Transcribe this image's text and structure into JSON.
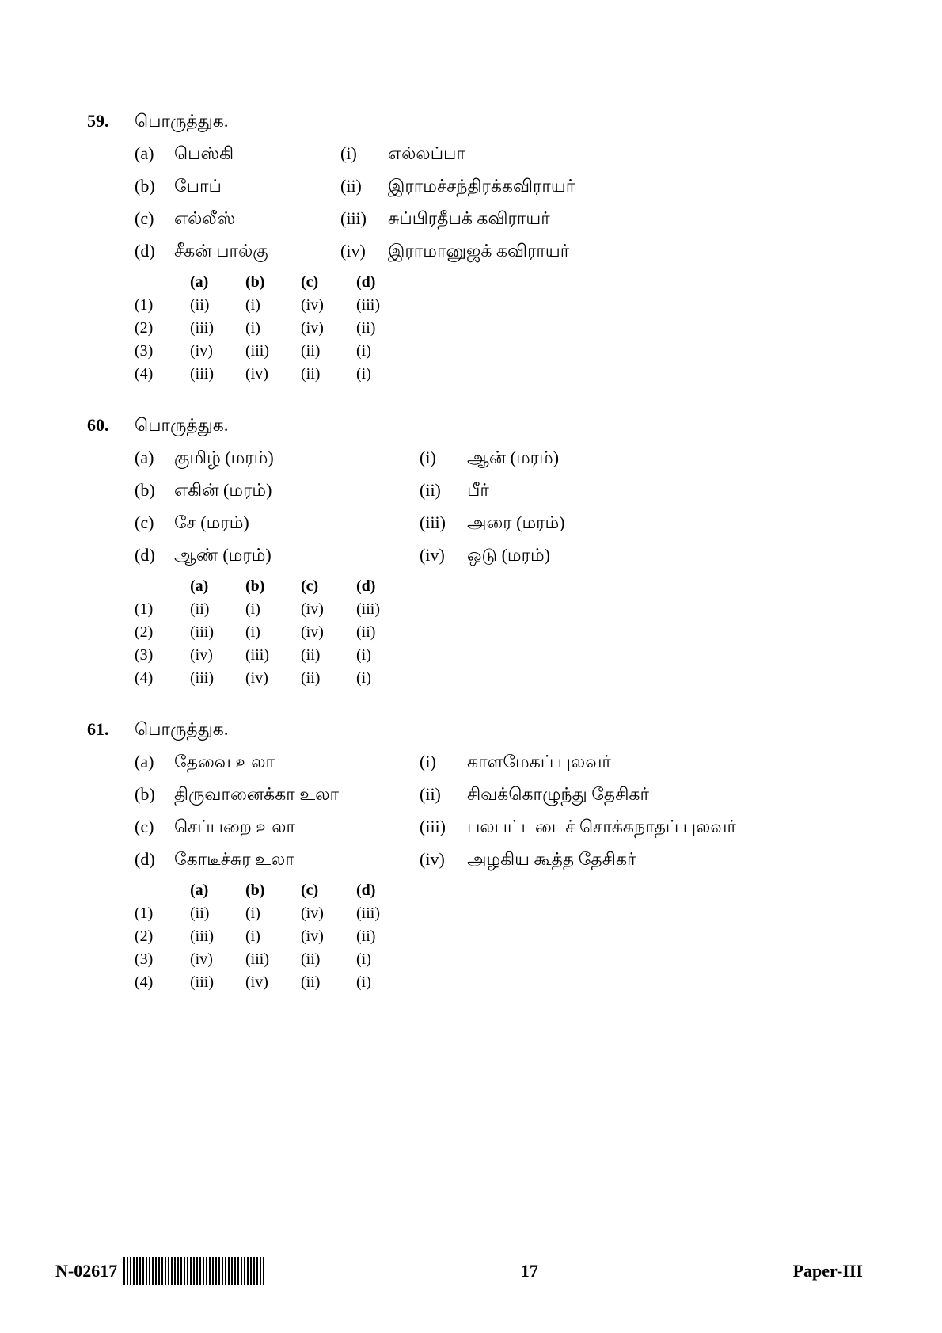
{
  "questions": [
    {
      "number": "59.",
      "title": "பொருத்துக.",
      "match_left": [
        {
          "label": "(a)",
          "text": "பெஸ்கி"
        },
        {
          "label": "(b)",
          "text": "போப்"
        },
        {
          "label": "(c)",
          "text": "எல்லீஸ்"
        },
        {
          "label": "(d)",
          "text": "சீகன் பால்கு"
        }
      ],
      "match_right": [
        {
          "label": "(i)",
          "text": "எல்லப்பா"
        },
        {
          "label": "(ii)",
          "text": "இராமச்சந்திரக்கவிராயர்"
        },
        {
          "label": "(iii)",
          "text": "சுப்பிரதீபக் கவிராயர்"
        },
        {
          "label": "(iv)",
          "text": "இராமானுஜக் கவிராயர்"
        }
      ],
      "left_width": "narrow",
      "options_header": [
        "(a)",
        "(b)",
        "(c)",
        "(d)"
      ],
      "options": [
        {
          "num": "(1)",
          "vals": [
            "(ii)",
            "(i)",
            "(iv)",
            "(iii)"
          ]
        },
        {
          "num": "(2)",
          "vals": [
            "(iii)",
            "(i)",
            "(iv)",
            "(ii)"
          ]
        },
        {
          "num": "(3)",
          "vals": [
            "(iv)",
            "(iii)",
            "(ii)",
            "(i)"
          ]
        },
        {
          "num": "(4)",
          "vals": [
            "(iii)",
            "(iv)",
            "(ii)",
            "(i)"
          ]
        }
      ]
    },
    {
      "number": "60.",
      "title": "பொருத்துக.",
      "match_left": [
        {
          "label": "(a)",
          "text": "குமிழ் (மரம்)"
        },
        {
          "label": "(b)",
          "text": "எகின் (மரம்)"
        },
        {
          "label": "(c)",
          "text": "சே (மரம்)"
        },
        {
          "label": "(d)",
          "text": "ஆண் (மரம்)"
        }
      ],
      "match_right": [
        {
          "label": "(i)",
          "text": "ஆன் (மரம்)"
        },
        {
          "label": "(ii)",
          "text": "பீர்"
        },
        {
          "label": "(iii)",
          "text": "அரை (மரம்)"
        },
        {
          "label": "(iv)",
          "text": "ஒடு (மரம்)"
        }
      ],
      "left_width": "wide",
      "options_header": [
        "(a)",
        "(b)",
        "(c)",
        "(d)"
      ],
      "options": [
        {
          "num": "(1)",
          "vals": [
            "(ii)",
            "(i)",
            "(iv)",
            "(iii)"
          ]
        },
        {
          "num": "(2)",
          "vals": [
            "(iii)",
            "(i)",
            "(iv)",
            "(ii)"
          ]
        },
        {
          "num": "(3)",
          "vals": [
            "(iv)",
            "(iii)",
            "(ii)",
            "(i)"
          ]
        },
        {
          "num": "(4)",
          "vals": [
            "(iii)",
            "(iv)",
            "(ii)",
            "(i)"
          ]
        }
      ]
    },
    {
      "number": "61.",
      "title": "பொருத்துக.",
      "match_left": [
        {
          "label": "(a)",
          "text": "தேவை உலா"
        },
        {
          "label": "(b)",
          "text": "திருவானைக்கா உலா"
        },
        {
          "label": "(c)",
          "text": "செப்பறை உலா"
        },
        {
          "label": "(d)",
          "text": "கோடீச்சுர உலா"
        }
      ],
      "match_right": [
        {
          "label": "(i)",
          "text": "காளமேகப் புலவர்"
        },
        {
          "label": "(ii)",
          "text": "சிவக்கொழுந்து தேசிகர்"
        },
        {
          "label": "(iii)",
          "text": "பலபட்டடைச் சொக்கநாதப் புலவர்"
        },
        {
          "label": "(iv)",
          "text": "அழகிய கூத்த தேசிகர்"
        }
      ],
      "left_width": "wide",
      "options_header": [
        "(a)",
        "(b)",
        "(c)",
        "(d)"
      ],
      "options": [
        {
          "num": "(1)",
          "vals": [
            "(ii)",
            "(i)",
            "(iv)",
            "(iii)"
          ]
        },
        {
          "num": "(2)",
          "vals": [
            "(iii)",
            "(i)",
            "(iv)",
            "(ii)"
          ]
        },
        {
          "num": "(3)",
          "vals": [
            "(iv)",
            "(iii)",
            "(ii)",
            "(i)"
          ]
        },
        {
          "num": "(4)",
          "vals": [
            "(iii)",
            "(iv)",
            "(ii)",
            "(i)"
          ]
        }
      ]
    }
  ],
  "footer": {
    "left_code": "N-02617",
    "page_number": "17",
    "right_label": "Paper-III"
  }
}
